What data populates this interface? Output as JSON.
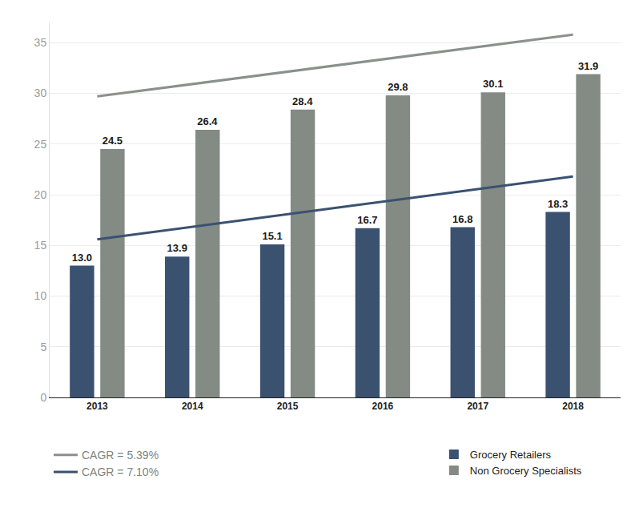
{
  "chart_data": {
    "type": "bar",
    "x": [
      2013,
      2014,
      2015,
      2016,
      2017,
      2018
    ],
    "xlim": [
      2012.5,
      2018.5
    ],
    "xticks": [
      2013,
      2014,
      2015,
      2016,
      2017,
      2018
    ],
    "ylim": [
      0,
      37
    ],
    "yticks": [
      0,
      5,
      10,
      15,
      20,
      25,
      30,
      35
    ],
    "grid": true,
    "data_labels": true,
    "legend": "bottom",
    "series": [
      {
        "name": "Grocery Retailers",
        "type": "bar",
        "color": "#3a5170",
        "values": [
          13.0,
          13.9,
          15.1,
          16.7,
          16.8,
          18.3
        ],
        "value_labels": [
          "13.0",
          "13.9",
          "15.1",
          "16.7",
          "16.8",
          "18.3"
        ]
      },
      {
        "name": "Non Grocery Specialists",
        "type": "bar",
        "color": "#838b84",
        "values": [
          24.5,
          26.4,
          28.4,
          29.8,
          30.1,
          31.9
        ],
        "value_labels": [
          "24.5",
          "26.4",
          "28.4",
          "29.8",
          "30.1",
          "31.9"
        ]
      },
      {
        "name": "CAGR = 5.39%",
        "type": "line",
        "color": "#8a918c",
        "x": [
          2013,
          2018
        ],
        "values": [
          29.7,
          35.8
        ]
      },
      {
        "name": "CAGR = 7.10%",
        "type": "line",
        "color": "#3a5170",
        "x": [
          2013,
          2018
        ],
        "values": [
          15.6,
          21.8
        ]
      }
    ]
  }
}
